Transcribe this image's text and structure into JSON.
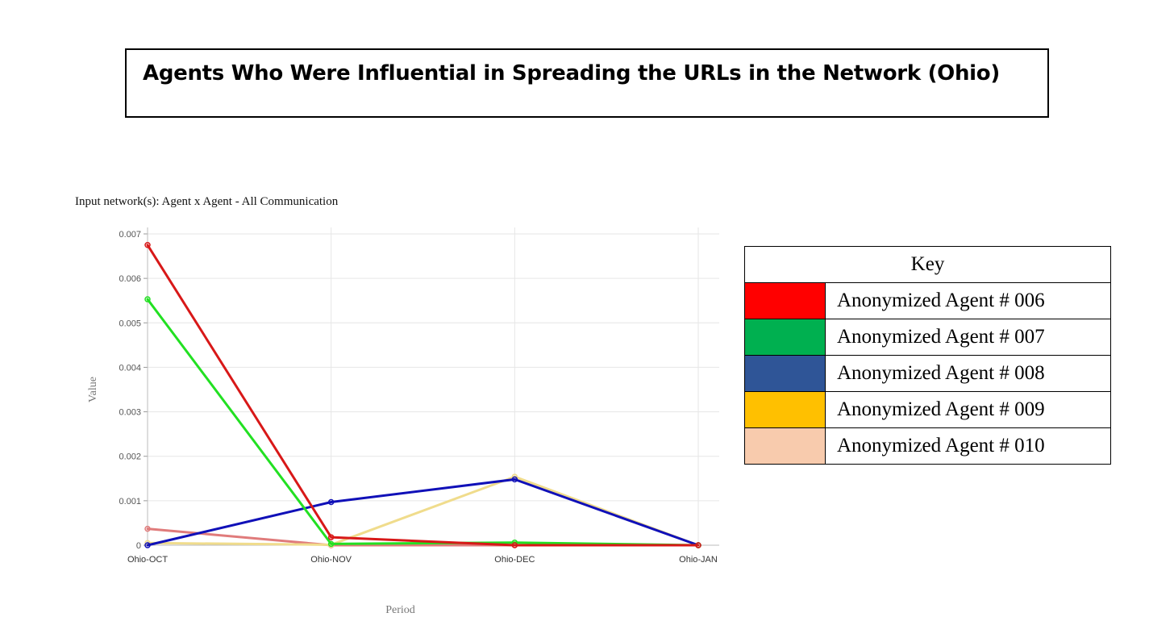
{
  "title": "Agents Who Were Influential in Spreading the URLs in the Network (Ohio)",
  "network_label": "Input network(s): Agent x Agent - All Communication",
  "key": {
    "heading": "Key",
    "items": [
      {
        "label": "Anonymized Agent # 006",
        "color": "#ff0000"
      },
      {
        "label": "Anonymized Agent # 007",
        "color": "#00b050"
      },
      {
        "label": "Anonymized Agent # 008",
        "color": "#2f5597"
      },
      {
        "label": "Anonymized Agent # 009",
        "color": "#ffc000"
      },
      {
        "label": "Anonymized Agent # 010",
        "color": "#f8cbad"
      }
    ]
  },
  "chart_data": {
    "type": "line",
    "xlabel": "Period",
    "ylabel": "Value",
    "categories": [
      "Ohio-OCT",
      "Ohio-NOV",
      "Ohio-DEC",
      "Ohio-JAN"
    ],
    "ylim": [
      0,
      0.007
    ],
    "yticks": [
      "0",
      "0.001",
      "0.002",
      "0.003",
      "0.004",
      "0.005",
      "0.006",
      "0.007"
    ],
    "grid": true,
    "series": [
      {
        "color": "#d81818",
        "values": [
          0.00675,
          0.00018,
          0.0,
          0.0
        ]
      },
      {
        "color": "#22e022",
        "values": [
          0.00553,
          3e-05,
          6e-05,
          0.0
        ]
      },
      {
        "color": "#1010b8",
        "values": [
          0.0,
          0.00097,
          0.00148,
          0.0
        ]
      },
      {
        "color": "#f0dc8c",
        "values": [
          5e-05,
          1e-05,
          0.00154,
          0.0
        ]
      },
      {
        "color": "#e07b7b",
        "values": [
          0.00037,
          0.0,
          0.0,
          0.0
        ]
      }
    ]
  }
}
